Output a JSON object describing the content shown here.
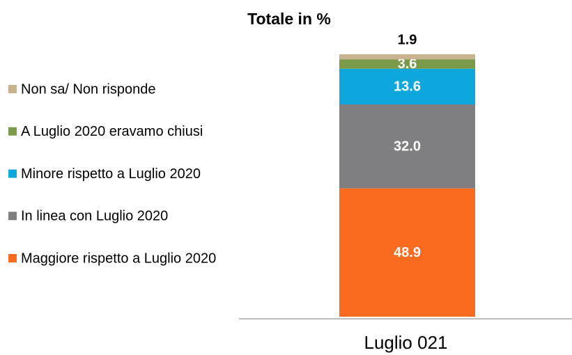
{
  "chart_data": {
    "type": "stacked_bar",
    "title": "Totale in %",
    "categories": [
      "Luglio 021"
    ],
    "series": [
      {
        "name": "Maggiore rispetto a Luglio 2020",
        "color": "#f96b1e",
        "values": [
          48.9
        ],
        "value_labels": [
          "48.9"
        ]
      },
      {
        "name": "In linea con Luglio 2020",
        "color": "#7f7f82",
        "values": [
          32.0
        ],
        "value_labels": [
          "32.0"
        ]
      },
      {
        "name": "Minore rispetto a Luglio 2020",
        "color": "#0ea7dc",
        "values": [
          13.6
        ],
        "value_labels": [
          "13.6"
        ]
      },
      {
        "name": "A Luglio 2020 eravamo chiusi",
        "color": "#7a9a4a",
        "values": [
          3.6
        ],
        "value_labels": [
          "3.6"
        ]
      },
      {
        "name": "Non sa/ Non risponde",
        "color": "#c8b38e",
        "values": [
          1.9
        ],
        "value_labels": [
          "1.9"
        ]
      }
    ]
  }
}
